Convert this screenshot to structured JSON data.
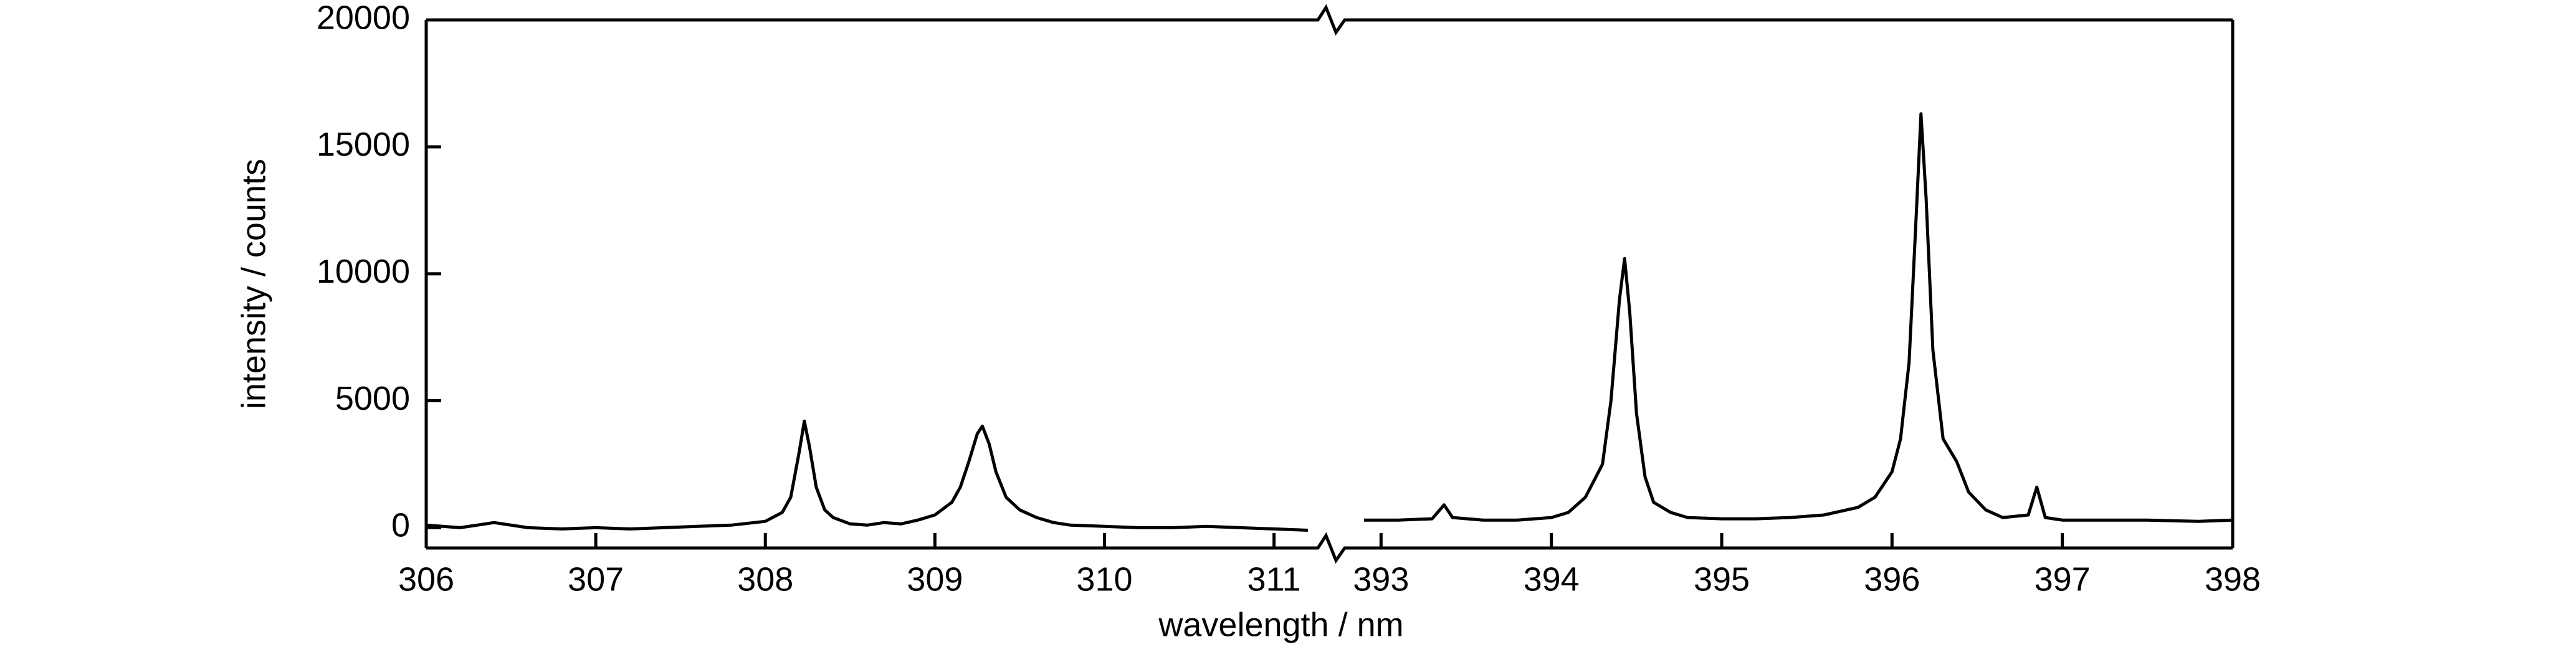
{
  "chart_data": {
    "type": "line",
    "xlabel": "wavelength / nm",
    "ylabel": "intensity / counts",
    "ylim": [
      -800,
      20000
    ],
    "yticks": [
      0,
      5000,
      10000,
      15000,
      20000
    ],
    "color": "#000000",
    "panels": [
      {
        "xlim": [
          306,
          311.2
        ],
        "xticks": [
          306,
          307,
          308,
          309,
          310,
          311
        ],
        "x": [
          306.0,
          306.2,
          306.4,
          306.6,
          306.8,
          307.0,
          307.2,
          307.4,
          307.6,
          307.8,
          308.0,
          308.1,
          308.15,
          308.2,
          308.23,
          308.26,
          308.3,
          308.35,
          308.4,
          308.5,
          308.6,
          308.7,
          308.8,
          308.9,
          309.0,
          309.1,
          309.15,
          309.2,
          309.25,
          309.28,
          309.32,
          309.36,
          309.42,
          309.5,
          309.6,
          309.7,
          309.8,
          310.0,
          310.2,
          310.4,
          310.6,
          310.8,
          311.0,
          311.2
        ],
        "values": [
          100,
          0,
          200,
          0,
          -50,
          0,
          -50,
          0,
          50,
          100,
          250,
          600,
          1200,
          3000,
          4200,
          3200,
          1600,
          700,
          400,
          150,
          100,
          200,
          150,
          300,
          500,
          1000,
          1600,
          2600,
          3700,
          4000,
          3300,
          2200,
          1200,
          700,
          400,
          200,
          100,
          50,
          0,
          0,
          50,
          0,
          -50,
          -100
        ]
      },
      {
        "xlim": [
          392.9,
          398
        ],
        "xticks": [
          393,
          394,
          395,
          396,
          397,
          398
        ],
        "x": [
          392.9,
          393.1,
          393.3,
          393.37,
          393.42,
          393.6,
          393.8,
          394.0,
          394.1,
          394.2,
          394.3,
          394.35,
          394.4,
          394.43,
          394.46,
          394.5,
          394.55,
          394.6,
          394.7,
          394.8,
          395.0,
          395.2,
          395.4,
          395.6,
          395.8,
          395.9,
          396.0,
          396.05,
          396.1,
          396.14,
          396.17,
          396.2,
          396.24,
          396.3,
          396.38,
          396.45,
          396.55,
          396.65,
          396.8,
          396.85,
          396.9,
          397.0,
          397.2,
          397.5,
          397.8,
          398.0
        ],
        "values": [
          300,
          300,
          350,
          900,
          400,
          300,
          300,
          400,
          600,
          1200,
          2500,
          5000,
          9000,
          10600,
          8500,
          4500,
          2000,
          1000,
          600,
          400,
          350,
          350,
          400,
          500,
          800,
          1200,
          2200,
          3500,
          6500,
          12000,
          16300,
          13000,
          7000,
          3500,
          2600,
          1400,
          700,
          400,
          500,
          1600,
          400,
          300,
          300,
          300,
          250,
          300
        ]
      }
    ]
  }
}
